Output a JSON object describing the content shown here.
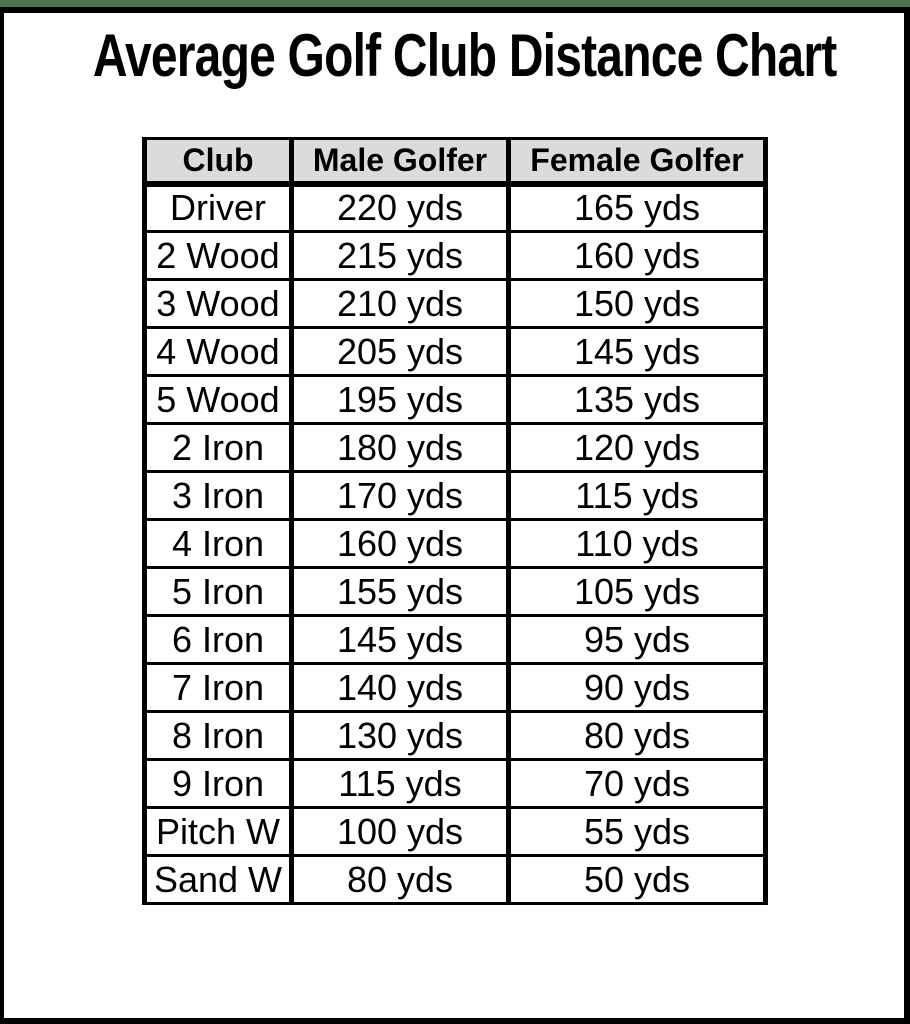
{
  "page": {
    "title": "Average Golf Club Distance Chart"
  },
  "colors": {
    "top_bar_green": "#4A7351",
    "frame_black": "#000000",
    "header_bg": "#DBDBDB",
    "grid_black": "#000000",
    "text_black": "#000000"
  },
  "chart_data": {
    "type": "table",
    "title": "Average Golf Club Distance Chart",
    "columns": [
      "Club",
      "Male Golfer",
      "Female Golfer"
    ],
    "rows": [
      [
        "Driver",
        "220 yds",
        "165 yds"
      ],
      [
        "2 Wood",
        "215 yds",
        "160 yds"
      ],
      [
        "3 Wood",
        "210 yds",
        "150 yds"
      ],
      [
        "4 Wood",
        "205 yds",
        "145 yds"
      ],
      [
        "5 Wood",
        "195 yds",
        "135 yds"
      ],
      [
        "2 Iron",
        "180 yds",
        "120 yds"
      ],
      [
        "3 Iron",
        "170 yds",
        "115 yds"
      ],
      [
        "4 Iron",
        "160 yds",
        "110 yds"
      ],
      [
        "5 Iron",
        "155 yds",
        "105 yds"
      ],
      [
        "6 Iron",
        "145 yds",
        "95 yds"
      ],
      [
        "7 Iron",
        "140 yds",
        "90 yds"
      ],
      [
        "8 Iron",
        "130 yds",
        "80 yds"
      ],
      [
        "9 Iron",
        "115 yds",
        "70 yds"
      ],
      [
        "Pitch W",
        "100 yds",
        "55 yds"
      ],
      [
        "Sand W",
        "80 yds",
        "50 yds"
      ]
    ],
    "units": "yds",
    "layout": {
      "grid": "on",
      "header_style": "gray-bold",
      "alignment": "center"
    }
  }
}
